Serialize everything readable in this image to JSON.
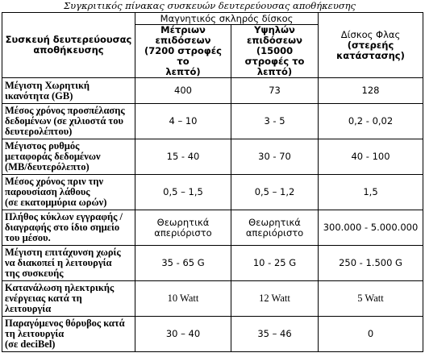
{
  "caption": "Συγκριτικός πίνακας συσκευών δευτερεύουσας αποθήκευσης",
  "header": {
    "device_col": [
      "Συσκευή δευτερεύουσας",
      "αποθήκευσης"
    ],
    "magnetic_group": "Μαγνητικός σκληρός δίσκος",
    "col_medium": [
      "Μέτριων επιδόσεων",
      "(7200 στροφές το",
      "λεπτό)"
    ],
    "col_high": [
      "Υψηλών επιδόσεων",
      "(15000 στροφές το",
      "λεπτό)"
    ],
    "col_flash": [
      "Δίσκος Φλας",
      "(στερεής",
      "κατάστασης)"
    ]
  },
  "rows": [
    {
      "label": [
        "Μέγιστη Χωρητική",
        "ικανότητα (GB)"
      ],
      "medium": [
        "400"
      ],
      "high": [
        "73"
      ],
      "flash": [
        "128"
      ]
    },
    {
      "label": [
        "Μέσος χρόνος προσπέλασης",
        "δεδομένων (σε χιλιοστά του",
        "δευτερολέπτου)"
      ],
      "medium": [
        "4 – 10"
      ],
      "high": [
        "3 - 5"
      ],
      "flash": [
        "0,2 - 0,02"
      ]
    },
    {
      "label": [
        "Μέγιστος ρυθμός",
        "μεταφοράς δεδομένων",
        "(MB/δευτερόλεπτο)"
      ],
      "medium": [
        "15 - 40"
      ],
      "high": [
        "30 - 70"
      ],
      "flash": [
        "40 - 100"
      ]
    },
    {
      "label": [
        "Μέσος χρόνος πριν την",
        "παρουσίαση λάθους",
        "(σε εκατομμύρια ωρών)"
      ],
      "medium": [
        "0,5 – 1,5"
      ],
      "high": [
        "0,5 – 1,2"
      ],
      "flash": [
        "1,5"
      ]
    },
    {
      "label": [
        "Πλήθος κύκλων εγγραφής /",
        "διαγραφής στο ίδιο σημείο",
        "του μέσου."
      ],
      "medium": [
        "Θεωρητικά",
        "απεριόριστο"
      ],
      "high": [
        "Θεωρητικά",
        "απεριόριστο"
      ],
      "flash": [
        "300.000 - 5.000.000"
      ]
    },
    {
      "label": [
        "Μέγιστη επιτάχυνση χωρίς",
        "να διακοπεί η λειτουργία",
        "της συσκευής"
      ],
      "medium": [
        "35 - 65 G"
      ],
      "high": [
        "10 - 25 G"
      ],
      "flash": [
        "250 - 1.500 G"
      ]
    },
    {
      "label": [
        "Κατανάλωση ηλεκτρικής",
        "ενέργειας κατά τη",
        "λειτουργία"
      ],
      "medium": [
        "10 Watt"
      ],
      "high": [
        "12 Watt"
      ],
      "flash": [
        "5 Watt"
      ]
    },
    {
      "label": [
        "Παραγόμενος θόρυβος κατά",
        "τη λειτουργία",
        "(σε deciBel)"
      ],
      "medium": [
        "30 – 40"
      ],
      "high": [
        "35 – 46"
      ],
      "flash": [
        "0"
      ]
    }
  ]
}
